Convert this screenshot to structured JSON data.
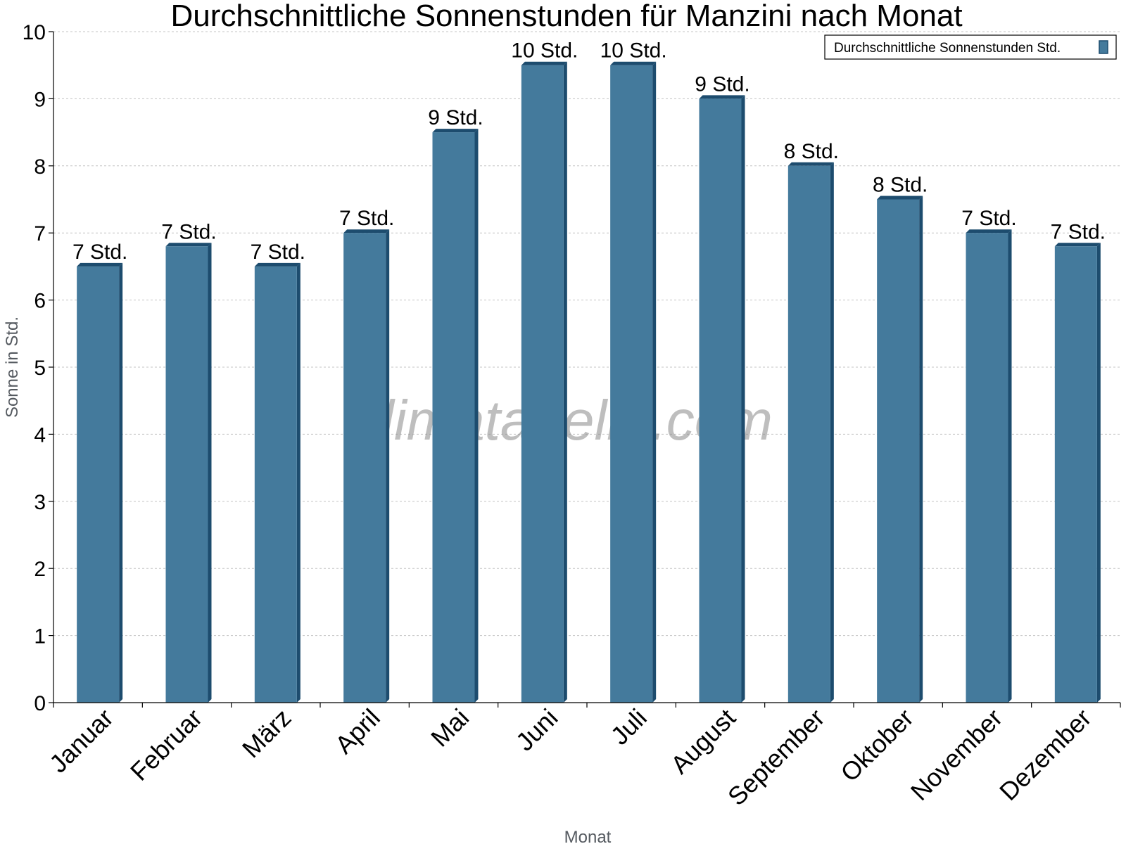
{
  "chart_data": {
    "type": "bar",
    "title": "Durchschnittliche Sonnenstunden für Manzini nach Monat",
    "xlabel": "Monat",
    "ylabel": "Sonne in Std.",
    "ylim": [
      0,
      10
    ],
    "yticks": [
      "0",
      "1",
      "2",
      "3",
      "4",
      "5",
      "6",
      "7",
      "8",
      "9",
      "10"
    ],
    "grid": true,
    "legend_position": "top-right",
    "categories": [
      "Januar",
      "Februar",
      "März",
      "April",
      "Mai",
      "Juni",
      "Juli",
      "August",
      "September",
      "Oktober",
      "November",
      "Dezember"
    ],
    "series": [
      {
        "name": "Durchschnittliche Sonnenstunden Std.",
        "values": [
          6.5,
          6.8,
          6.5,
          7.0,
          8.5,
          9.5,
          9.5,
          9.0,
          8.0,
          7.5,
          7.0,
          6.8
        ],
        "labels": [
          "7 Std.",
          "7 Std.",
          "7 Std.",
          "7 Std.",
          "9 Std.",
          "10 Std.",
          "10 Std.",
          "9 Std.",
          "8 Std.",
          "8 Std.",
          "7 Std.",
          "7 Std."
        ],
        "color": "#447a9c",
        "side_color": "#1d4c6e"
      }
    ],
    "watermark": "klimatabelle.com"
  }
}
